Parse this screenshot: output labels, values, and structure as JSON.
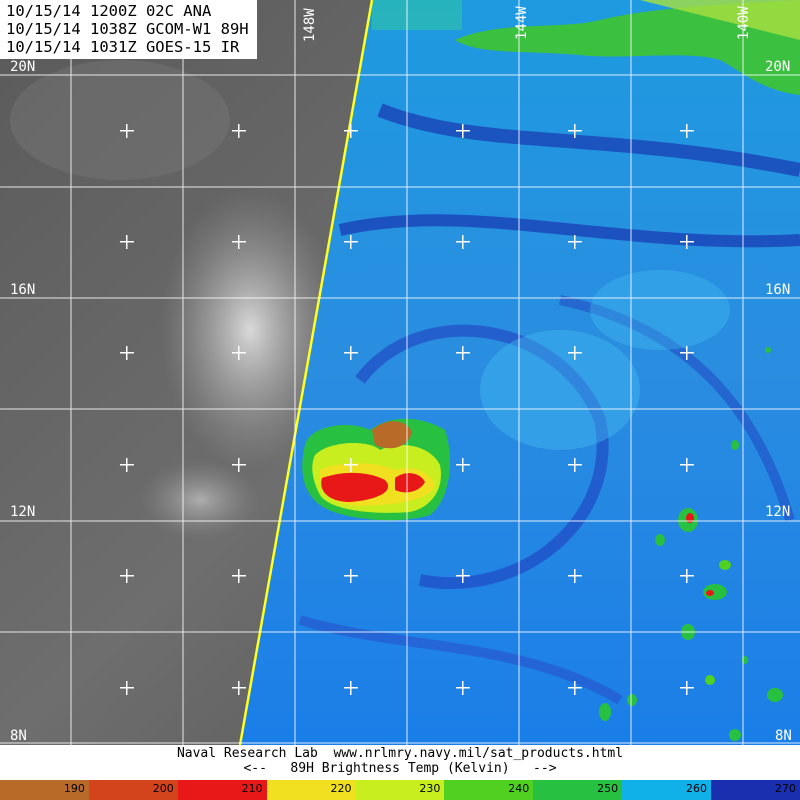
{
  "header": {
    "line1": "10/15/14 1200Z 02C ANA",
    "line2": "10/15/14 1038Z GCOM-W1 89H",
    "line3": "10/15/14 1031Z GOES-15 IR"
  },
  "lat_labels": [
    "20N",
    "16N",
    "12N",
    "8N"
  ],
  "lon_labels": [
    "148W",
    "144W",
    "140W"
  ],
  "footer": {
    "line1": "Naval Research Lab  www.nrlmry.navy.mil/sat_products.html",
    "line2": "<--   89H Brightness Temp (Kelvin)   -->"
  },
  "colorbar": {
    "ticks": [
      "190",
      "200",
      "210",
      "220",
      "230",
      "240",
      "250",
      "260",
      "270"
    ],
    "colors": [
      "#b86a28",
      "#d4441c",
      "#e81818",
      "#f0e020",
      "#c8ee20",
      "#50d020",
      "#28c040",
      "#10b0e8",
      "#1a2fb0"
    ]
  }
}
